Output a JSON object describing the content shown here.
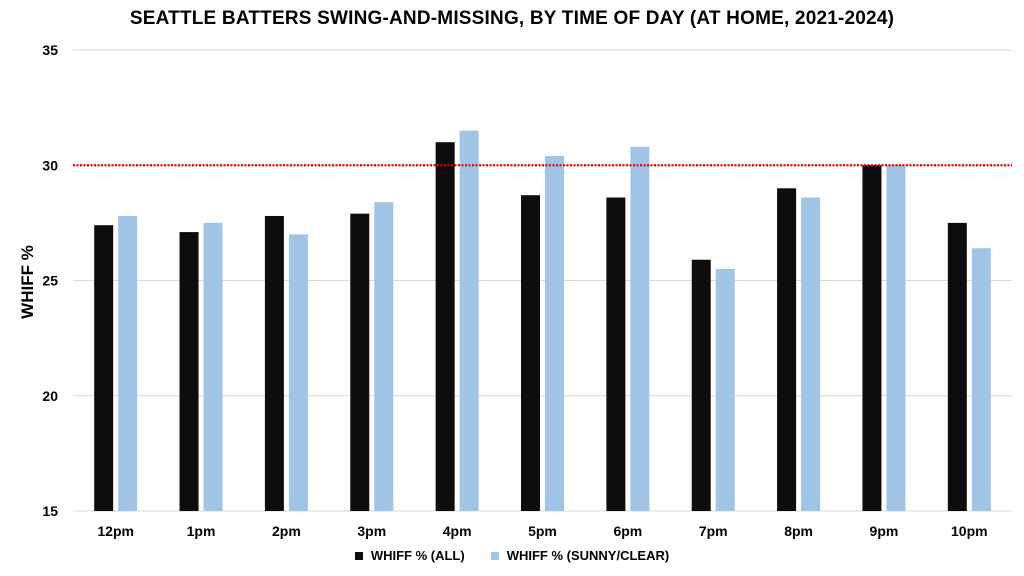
{
  "colors": {
    "all": "#0d0d0d",
    "sunny": "#a0c4e6",
    "threshold": "#e8000b",
    "grid": "#d9d9d9"
  },
  "chart_data": {
    "type": "bar",
    "title": "SEATTLE BATTERS SWING-AND-MISSING, BY TIME OF DAY (AT HOME, 2021-2024)",
    "xlabel": "",
    "ylabel": "WHIFF %",
    "ylim": [
      15,
      35
    ],
    "yticks": [
      15,
      20,
      25,
      30,
      35
    ],
    "grid": "horizontal",
    "legend_position": "bottom",
    "categories": [
      "12pm",
      "1pm",
      "2pm",
      "3pm",
      "4pm",
      "5pm",
      "6pm",
      "7pm",
      "8pm",
      "9pm",
      "10pm"
    ],
    "series": [
      {
        "name": "WHIFF % (ALL)",
        "values": [
          27.4,
          27.1,
          27.8,
          27.9,
          31.0,
          28.7,
          28.6,
          25.9,
          29.0,
          30.0,
          27.5
        ]
      },
      {
        "name": "WHIFF % (SUNNY/CLEAR)",
        "values": [
          27.8,
          27.5,
          27.0,
          28.4,
          31.5,
          30.4,
          30.8,
          25.5,
          28.6,
          30.0,
          26.4
        ]
      }
    ],
    "reference_line": {
      "value": 30,
      "style": "dotted"
    }
  }
}
